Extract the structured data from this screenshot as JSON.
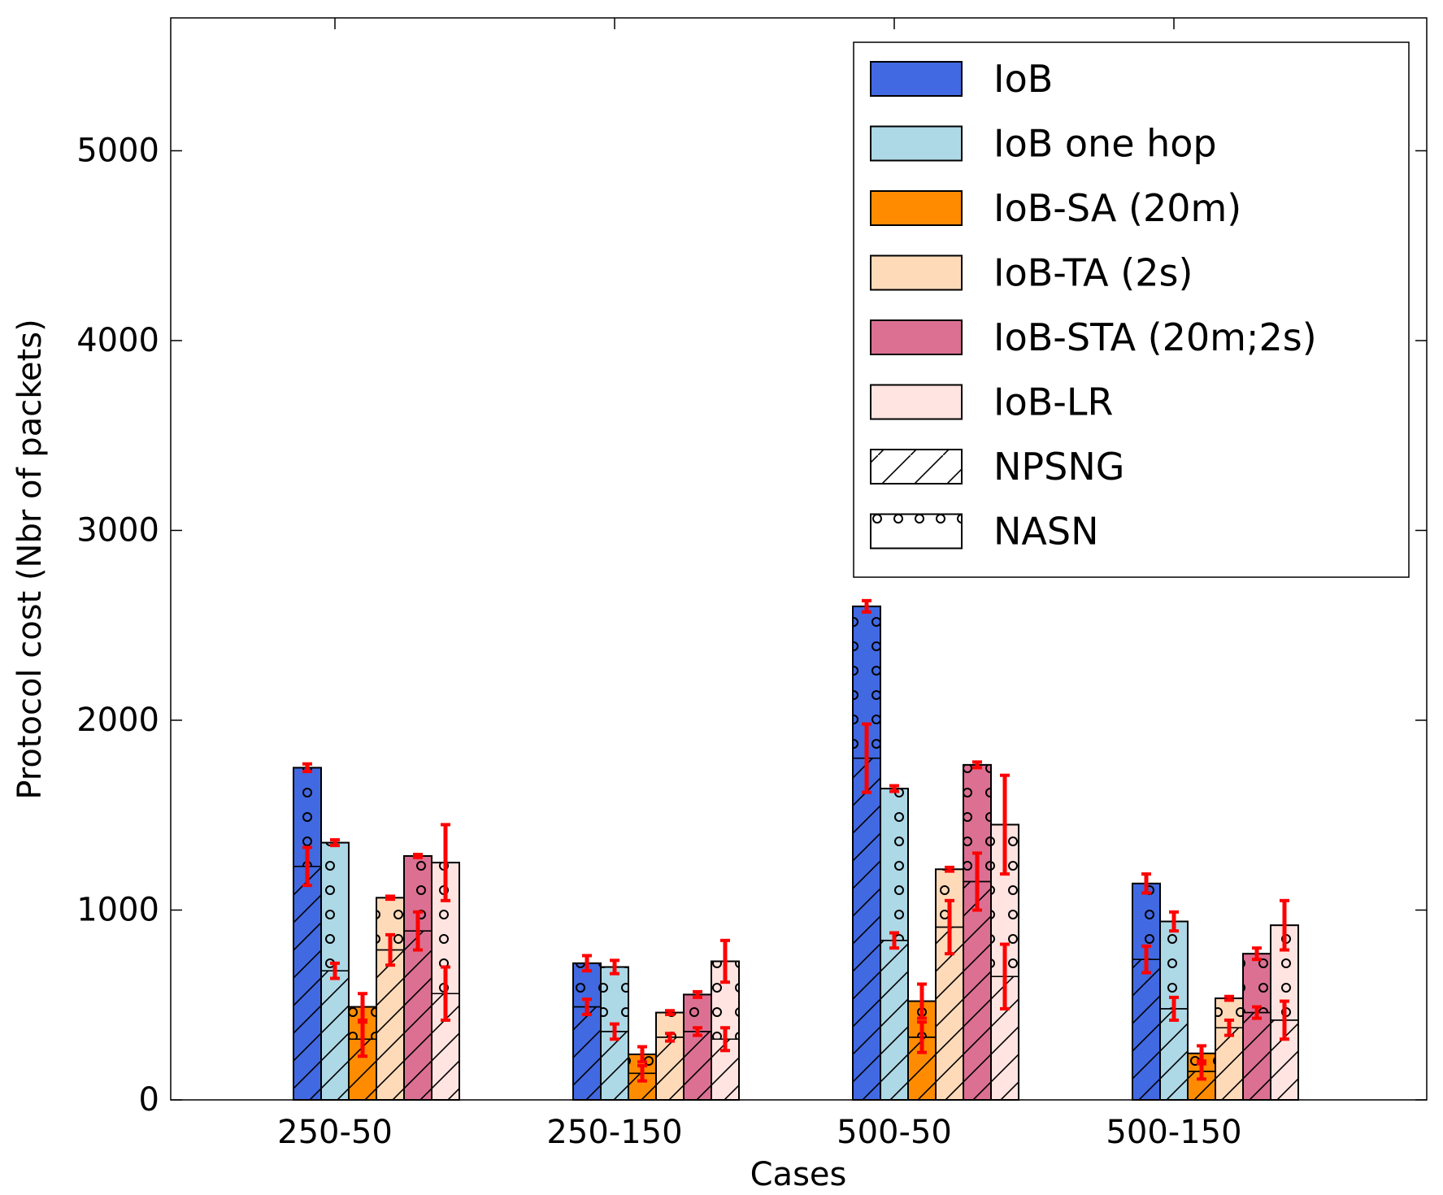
{
  "chart_data": {
    "type": "bar",
    "title": "",
    "xlabel": "Cases",
    "ylabel": "Protocol cost (Nbr of packets)",
    "ylim": [
      0,
      5700
    ],
    "yticks": [
      0,
      1000,
      2000,
      3000,
      4000,
      5000
    ],
    "categories": [
      "250-50",
      "250-150",
      "500-50",
      "500-150"
    ],
    "grid": false,
    "legend_position": "top-right",
    "series": [
      {
        "name": "IoB",
        "color": "#4169e1",
        "total": [
          1750,
          720,
          2600,
          1140
        ],
        "total_err": [
          20,
          40,
          30,
          50
        ],
        "npsng": [
          1230,
          490,
          1800,
          740
        ],
        "npsng_err": [
          100,
          40,
          180,
          70
        ]
      },
      {
        "name": "IoB one hop",
        "color": "#add8e6",
        "total": [
          1355,
          700,
          1640,
          940
        ],
        "total_err": [
          15,
          35,
          15,
          50
        ],
        "npsng": [
          680,
          360,
          840,
          480
        ],
        "npsng_err": [
          40,
          40,
          40,
          60
        ]
      },
      {
        "name": "IoB-SA (20m)",
        "color": "#ff8c00",
        "total": [
          490,
          240,
          520,
          245
        ],
        "total_err": [
          70,
          40,
          90,
          40
        ],
        "npsng": [
          320,
          140,
          330,
          150
        ],
        "npsng_err": [
          90,
          40,
          80,
          40
        ]
      },
      {
        "name": "IoB-TA (2s)",
        "color": "#ffdab9",
        "total": [
          1065,
          460,
          1215,
          535
        ],
        "total_err": [
          8,
          10,
          10,
          10
        ],
        "npsng": [
          790,
          330,
          910,
          380
        ],
        "npsng_err": [
          80,
          20,
          140,
          40
        ]
      },
      {
        "name": "IoB-STA (20m;2s)",
        "color": "#db7093",
        "total": [
          1285,
          555,
          1765,
          770
        ],
        "total_err": [
          8,
          15,
          15,
          30
        ],
        "npsng": [
          890,
          360,
          1150,
          460
        ],
        "npsng_err": [
          100,
          20,
          150,
          30
        ]
      },
      {
        "name": "IoB-LR",
        "color": "#ffe4e1",
        "total": [
          1250,
          730,
          1450,
          920
        ],
        "total_err": [
          200,
          110,
          260,
          130
        ],
        "npsng": [
          560,
          320,
          650,
          420
        ],
        "npsng_err": [
          140,
          60,
          170,
          100
        ]
      }
    ],
    "pattern_legend": [
      {
        "name": "NPSNG",
        "pattern": "hatch"
      },
      {
        "name": "NASN",
        "pattern": "dots"
      }
    ]
  }
}
